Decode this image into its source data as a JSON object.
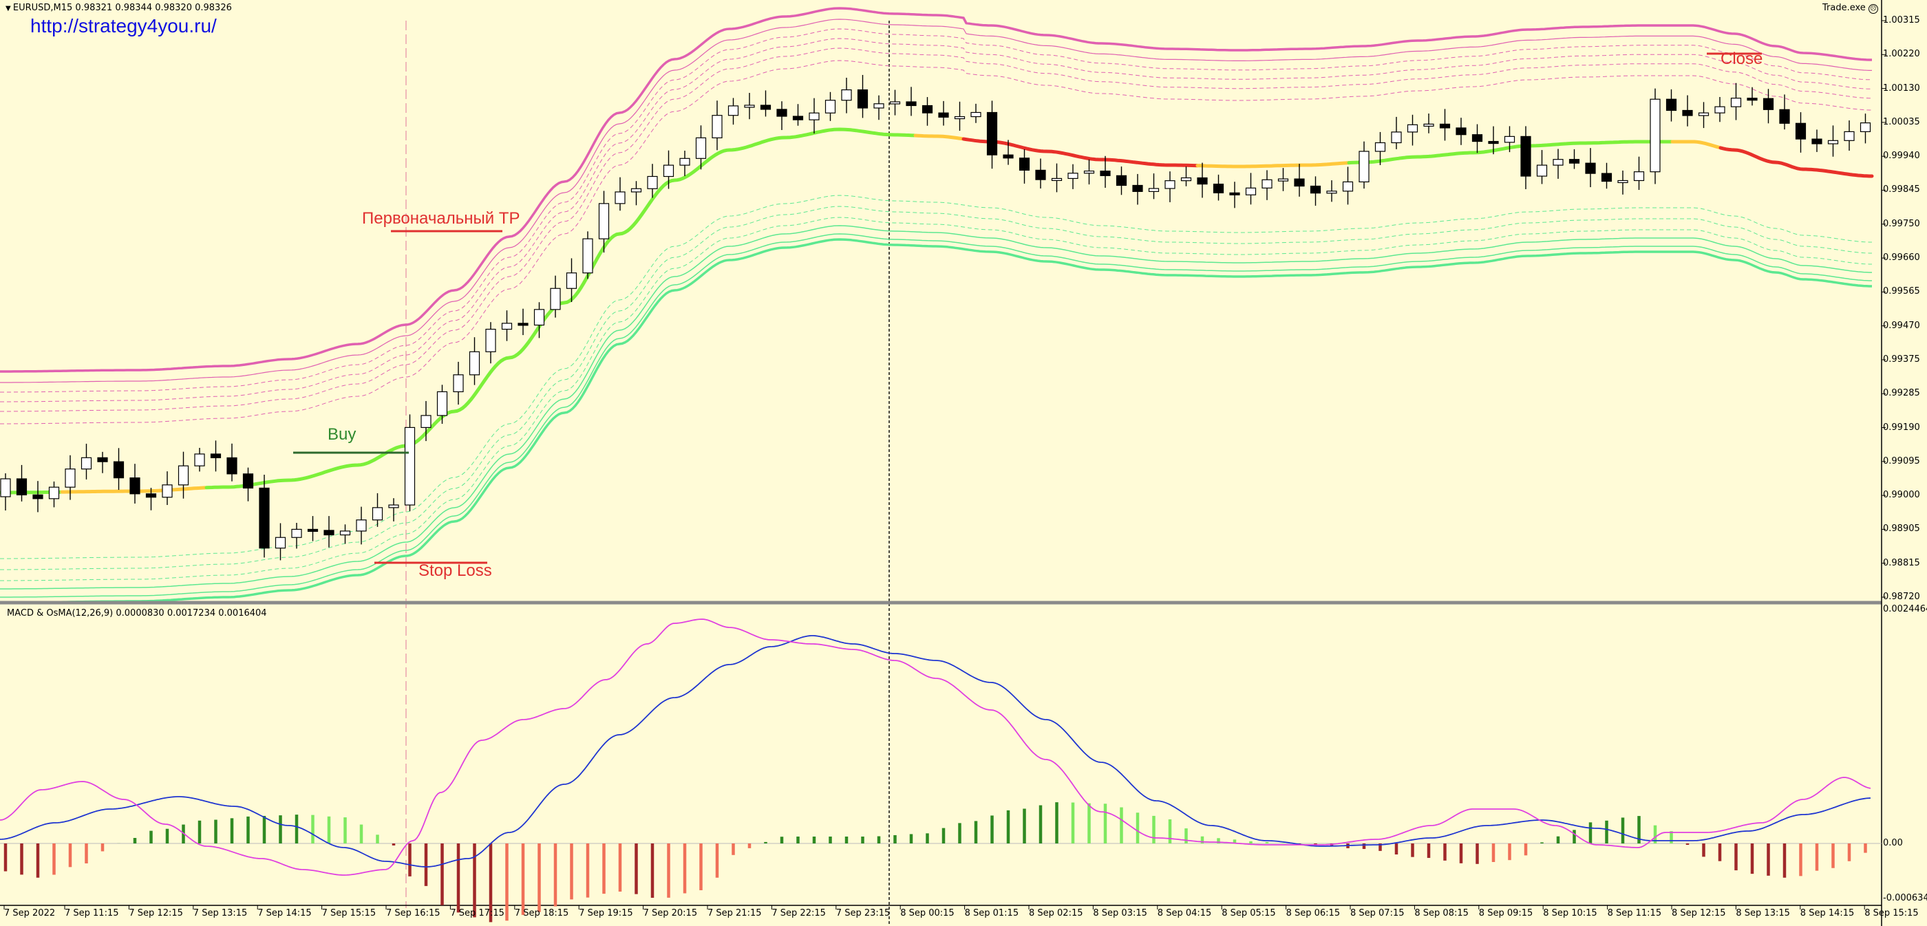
{
  "header": {
    "symbol_info": "EURUSD,M15  0.98321 0.98344 0.98320 0.98326",
    "website": "http://strategy4you.ru/",
    "expert": "Trade.exe",
    "indicator_info": "MACD & OsMA(12,26,9) 0.0000830 0.0017234 0.0016404"
  },
  "annotations": {
    "initial_tp": "Первоначальный TP",
    "buy": "Buy",
    "stop_loss": "Stop Loss",
    "close": "Close"
  },
  "price_axis": [
    "1.00315",
    "1.00220",
    "1.00130",
    "1.00035",
    "0.99940",
    "0.99845",
    "0.99750",
    "0.99660",
    "0.99565",
    "0.99470",
    "0.99375",
    "0.99285",
    "0.99190",
    "0.99095",
    "0.99000",
    "0.98905",
    "0.98815",
    "0.98720"
  ],
  "macd_axis": [
    "0.0024464",
    "0.00",
    "-0.000634"
  ],
  "time_axis": [
    "7 Sep 2022",
    "7 Sep 11:15",
    "7 Sep 12:15",
    "7 Sep 13:15",
    "7 Sep 14:15",
    "7 Sep 15:15",
    "7 Sep 16:15",
    "7 Sep 17:15",
    "7 Sep 18:15",
    "7 Sep 19:15",
    "7 Sep 20:15",
    "7 Sep 21:15",
    "7 Sep 22:15",
    "7 Sep 23:15",
    "8 Sep 00:15",
    "8 Sep 01:15",
    "8 Sep 02:15",
    "8 Sep 03:15",
    "8 Sep 04:15",
    "8 Sep 05:15",
    "8 Sep 06:15",
    "8 Sep 07:15",
    "8 Sep 08:15",
    "8 Sep 09:15",
    "8 Sep 10:15",
    "8 Sep 11:15",
    "8 Sep 12:15",
    "8 Sep 13:15",
    "8 Sep 14:15",
    "8 Sep 15:15"
  ],
  "colors": {
    "background": "#fffbd7",
    "bull_candle": "#ffffff",
    "bear_candle": "#000000",
    "ma_up": "#7cf03a",
    "ma_flat": "#ffc83c",
    "ma_down": "#e8302a",
    "upper_band": "#e060b0",
    "lower_band": "#5ce890",
    "macd_line": "#1f35d0",
    "signal_line": "#e040e0",
    "hist_up_light": "#7ee860",
    "hist_up_dark": "#2f8a22",
    "hist_down_light": "#f07058",
    "hist_down_dark": "#a0282a",
    "annotation_red": "#e03030",
    "annotation_green": "#2e8a2e",
    "link_blue": "#1010e0"
  }
}
